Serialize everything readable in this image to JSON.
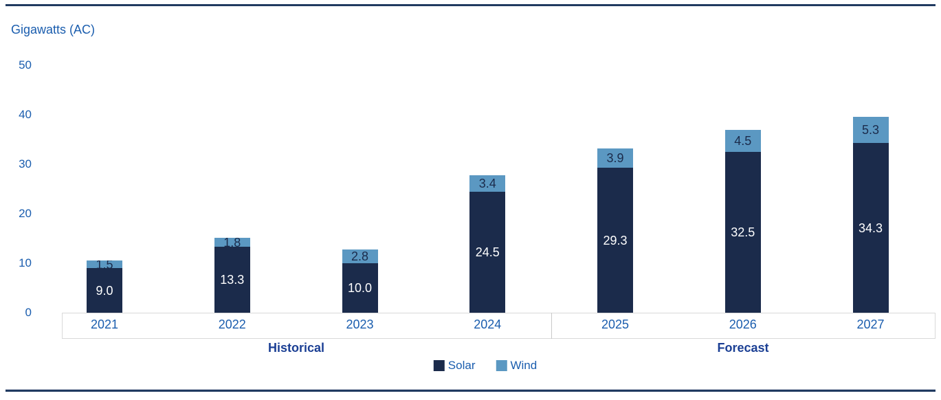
{
  "chart_data": {
    "type": "bar",
    "stacked": true,
    "ylabel": "Gigawatts (AC)",
    "categories": [
      "2021",
      "2022",
      "2023",
      "2024",
      "2025",
      "2026",
      "2027"
    ],
    "series": [
      {
        "name": "Solar",
        "color": "#1B2B4B",
        "label_color": "#FFFFFF",
        "values": [
          9.0,
          13.3,
          10.0,
          24.5,
          29.3,
          32.5,
          34.3
        ]
      },
      {
        "name": "Wind",
        "color": "#5B98C2",
        "label_color": "#1B2B4B",
        "values": [
          1.5,
          1.8,
          2.8,
          3.4,
          3.9,
          4.5,
          5.3
        ]
      }
    ],
    "y_ticks": [
      0,
      10,
      20,
      30,
      40,
      50
    ],
    "ylim": [
      0,
      50
    ],
    "grid": false,
    "legend_position": "bottom",
    "legend": [
      {
        "label": "Solar",
        "color": "#1B2B4B"
      },
      {
        "label": "Wind",
        "color": "#5B98C2"
      }
    ],
    "sections": [
      {
        "label": "Historical",
        "categories": [
          "2021",
          "2022",
          "2023",
          "2024"
        ]
      },
      {
        "label": "Forecast",
        "categories": [
          "2025",
          "2026",
          "2027"
        ]
      }
    ]
  },
  "colors": {
    "axis_text": "#1A5DAE",
    "section_text": "#1B3F94",
    "rule": "#203A60",
    "axis_box_border": "#D9D9D9"
  }
}
